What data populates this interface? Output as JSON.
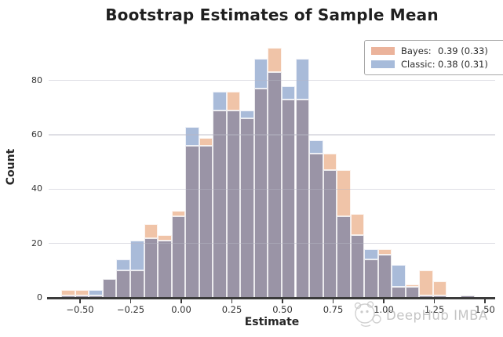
{
  "title": "Bootstrap Estimates of Sample Mean",
  "legend": {
    "items": [
      {
        "label": "Bayes:",
        "value": "0.39 (0.33)",
        "color": "#ebb39b"
      },
      {
        "label": "Classic:",
        "value": "0.38 (0.31)",
        "color": "#a7bbda"
      }
    ]
  },
  "watermark": {
    "text": "DeepHub IMBA",
    "logo": "mascot-logo-icon"
  },
  "chart_data": {
    "type": "histogram-overlay",
    "title": "Bootstrap Estimates of Sample Mean",
    "xlabel": "Estimate",
    "ylabel": "Count",
    "xlim": [
      -0.655,
      1.55
    ],
    "ylim": [
      0,
      96
    ],
    "grid": "horizontal",
    "legend_position": "upper right",
    "bin_start": -0.592,
    "bin_width": 0.068,
    "x_ticks": [
      {
        "value": -0.5,
        "label": "−0.50"
      },
      {
        "value": -0.25,
        "label": "−0.25"
      },
      {
        "value": 0.0,
        "label": "0.00"
      },
      {
        "value": 0.25,
        "label": "0.25"
      },
      {
        "value": 0.5,
        "label": "0.50"
      },
      {
        "value": 0.75,
        "label": "0.75"
      },
      {
        "value": 1.0,
        "label": "1.00"
      },
      {
        "value": 1.25,
        "label": "1.25"
      },
      {
        "value": 1.5,
        "label": "1.50"
      }
    ],
    "y_ticks": [
      {
        "value": 0,
        "label": "0"
      },
      {
        "value": 20,
        "label": "20"
      },
      {
        "value": 40,
        "label": "40"
      },
      {
        "value": 60,
        "label": "60"
      },
      {
        "value": 80,
        "label": "80"
      }
    ],
    "series": [
      {
        "name": "Bayes",
        "mean_label": "0.39 (0.33)",
        "counts": [
          3,
          3,
          1,
          7,
          10,
          10,
          27,
          23,
          32,
          56,
          59,
          69,
          76,
          66,
          77,
          92,
          73,
          73,
          53,
          53,
          47,
          31,
          14,
          18,
          4,
          5,
          10,
          6,
          0,
          1
        ]
      },
      {
        "name": "Classic",
        "mean_label": "0.38 (0.31)",
        "counts": [
          1,
          1,
          3,
          7,
          14,
          21,
          22,
          21,
          30,
          63,
          56,
          76,
          69,
          69,
          88,
          83,
          78,
          88,
          58,
          47,
          30,
          23,
          18,
          16,
          12,
          4,
          1,
          1,
          0,
          1
        ]
      }
    ],
    "colors": {
      "bayes_fill": "#f0c4a8",
      "classic_fill": "#a9bbd9",
      "overlap_fill": "#9a94a6",
      "gridline": "#e2e2e8",
      "axis": "#3b3b3b"
    }
  }
}
